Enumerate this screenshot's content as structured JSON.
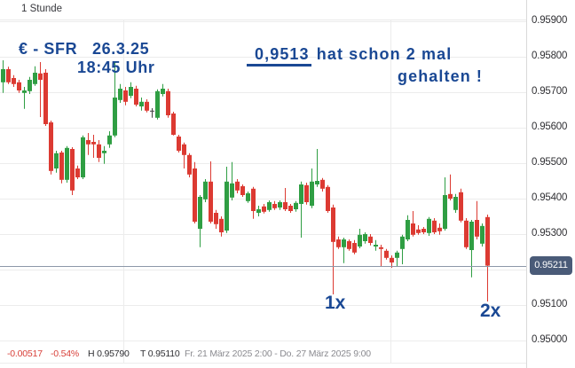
{
  "toolbar": {
    "timeframe": "1 Stunde"
  },
  "annotations": {
    "headline": "€ - SFR   26.3.25",
    "time": "18:45 Uhr",
    "support_level": "0,9513",
    "note_line1": " hat schon 2 mal",
    "note_line2": "gehalten !",
    "marker1": "1x",
    "marker2": "2x",
    "color": "#1a4894"
  },
  "axis": {
    "labels": [
      "0.95900",
      "0.95800",
      "0.95700",
      "0.95600",
      "0.95500",
      "0.95400",
      "0.95300",
      "0.95100",
      "0.95000"
    ]
  },
  "price_badge": {
    "value": "0.95211",
    "background": "#4a5b78"
  },
  "status": {
    "change": "-0.00517",
    "change_percent": "-0.54%",
    "high": "H 0.95790",
    "low": "T 0.95110",
    "date_range": "Fr. 21 März 2025 2:00 - Do. 27 März 2025 9:00"
  },
  "colors": {
    "up": "#2f9e43",
    "down": "#dc3a32",
    "neutral": "#3f3f3f",
    "grid": "#ececec",
    "price_line": "#8c98a8"
  },
  "chart_data": {
    "type": "candlestick",
    "instrument": "EUR-CHF (€ - SFR)",
    "timeframe_hours": 1,
    "ylim": [
      0.95,
      0.959
    ],
    "y_grid_step": 0.001,
    "x_range_label": "Fr. 21 März 2025 2:00 - Do. 27 März 2025 9:00",
    "session_high": 0.9579,
    "session_low": 0.9511,
    "change": -0.00517,
    "change_percent": -0.54,
    "last": 0.95211,
    "support_level": 0.9513,
    "ohlc": [
      [
        0.95728,
        0.9579,
        0.95698,
        0.95765
      ],
      [
        0.95765,
        0.95772,
        0.95723,
        0.95728
      ],
      [
        0.9574,
        0.95748,
        0.95715,
        0.95723
      ],
      [
        0.95728,
        0.95735,
        0.95698,
        0.95705
      ],
      [
        0.95698,
        0.95715,
        0.95653,
        0.95705
      ],
      [
        0.95703,
        0.95743,
        0.95695,
        0.95735
      ],
      [
        0.95723,
        0.95773,
        0.95718,
        0.95755
      ],
      [
        0.95753,
        0.95785,
        0.9563,
        0.95735
      ],
      [
        0.95755,
        0.95765,
        0.95605,
        0.9561
      ],
      [
        0.95615,
        0.9562,
        0.95468,
        0.95478
      ],
      [
        0.95485,
        0.95535,
        0.95473,
        0.95528
      ],
      [
        0.9553,
        0.95535,
        0.95443,
        0.95453
      ],
      [
        0.95453,
        0.95548,
        0.95445,
        0.95543
      ],
      [
        0.9554,
        0.95545,
        0.9541,
        0.95423
      ],
      [
        0.95485,
        0.95493,
        0.95455,
        0.9546
      ],
      [
        0.9546,
        0.95578,
        0.95455,
        0.95573
      ],
      [
        0.95565,
        0.95585,
        0.95523,
        0.95553
      ],
      [
        0.9556,
        0.9558,
        0.95515,
        0.95553
      ],
      [
        0.95553,
        0.95565,
        0.95503,
        0.95515
      ],
      [
        0.95528,
        0.95548,
        0.95498,
        0.95535
      ],
      [
        0.95553,
        0.9559,
        0.95543,
        0.95578
      ],
      [
        0.95578,
        0.95785,
        0.95573,
        0.95685
      ],
      [
        0.95678,
        0.95723,
        0.9567,
        0.9571
      ],
      [
        0.95705,
        0.95715,
        0.95663,
        0.95673
      ],
      [
        0.9569,
        0.95728,
        0.95683,
        0.95715
      ],
      [
        0.9571,
        0.95718,
        0.9566,
        0.95665
      ],
      [
        0.9566,
        0.95685,
        0.95648,
        0.95673
      ],
      [
        0.95673,
        0.9568,
        0.95643,
        0.95648
      ],
      [
        0.95648,
        0.95655,
        0.95628,
        0.95648
      ],
      [
        0.95628,
        0.95708,
        0.95623,
        0.95703
      ],
      [
        0.95695,
        0.95723,
        0.95688,
        0.9571
      ],
      [
        0.95703,
        0.9571,
        0.95628,
        0.95635
      ],
      [
        0.9564,
        0.95645,
        0.95578,
        0.9558
      ],
      [
        0.95575,
        0.9558,
        0.9553,
        0.95535
      ],
      [
        0.95553,
        0.95558,
        0.95485,
        0.95523
      ],
      [
        0.95523,
        0.95528,
        0.9546,
        0.95468
      ],
      [
        0.95485,
        0.95503,
        0.9533,
        0.95335
      ],
      [
        0.95315,
        0.9541,
        0.95263,
        0.95405
      ],
      [
        0.95398,
        0.95455,
        0.9539,
        0.95448
      ],
      [
        0.95448,
        0.95505,
        0.9533,
        0.95335
      ],
      [
        0.9536,
        0.95368,
        0.95315,
        0.95328
      ],
      [
        0.95343,
        0.9535,
        0.95293,
        0.95305
      ],
      [
        0.9531,
        0.9549,
        0.95303,
        0.95448
      ],
      [
        0.95403,
        0.95503,
        0.95395,
        0.95443
      ],
      [
        0.95448,
        0.95455,
        0.95415,
        0.95423
      ],
      [
        0.95435,
        0.9544,
        0.95405,
        0.9541
      ],
      [
        0.95393,
        0.9542,
        0.95388,
        0.95415
      ],
      [
        0.95428,
        0.95433,
        0.95343,
        0.95365
      ],
      [
        0.9536,
        0.9538,
        0.9535,
        0.9537
      ],
      [
        0.95378,
        0.95385,
        0.95358,
        0.95363
      ],
      [
        0.95368,
        0.95395,
        0.95363,
        0.9539
      ],
      [
        0.95385,
        0.95393,
        0.95368,
        0.95373
      ],
      [
        0.95375,
        0.95395,
        0.95368,
        0.9539
      ],
      [
        0.9539,
        0.9543,
        0.95365,
        0.9537
      ],
      [
        0.9538,
        0.95385,
        0.9536,
        0.95365
      ],
      [
        0.9537,
        0.95393,
        0.95363,
        0.95388
      ],
      [
        0.95385,
        0.95448,
        0.9529,
        0.9544
      ],
      [
        0.95438,
        0.95445,
        0.95383,
        0.9539
      ],
      [
        0.9538,
        0.95485,
        0.95373,
        0.95448
      ],
      [
        0.9544,
        0.9554,
        0.95433,
        0.9545
      ],
      [
        0.95453,
        0.95458,
        0.9542,
        0.95428
      ],
      [
        0.95433,
        0.95438,
        0.9536,
        0.95365
      ],
      [
        0.95375,
        0.95383,
        0.9513,
        0.95278
      ],
      [
        0.95285,
        0.95293,
        0.95258,
        0.95263
      ],
      [
        0.95263,
        0.9529,
        0.95218,
        0.95285
      ],
      [
        0.9528,
        0.95285,
        0.95253,
        0.95258
      ],
      [
        0.95275,
        0.95283,
        0.95243,
        0.95248
      ],
      [
        0.95265,
        0.95315,
        0.9526,
        0.95298
      ],
      [
        0.9528,
        0.95305,
        0.95273,
        0.953
      ],
      [
        0.95293,
        0.953,
        0.95268,
        0.95275
      ],
      [
        0.95265,
        0.95283,
        0.95253,
        0.9527
      ],
      [
        0.95263,
        0.9527,
        0.9521,
        0.95258
      ],
      [
        0.95253,
        0.95258,
        0.95228,
        0.95233
      ],
      [
        0.95233,
        0.9524,
        0.95205,
        0.9522
      ],
      [
        0.95233,
        0.95253,
        0.95208,
        0.95248
      ],
      [
        0.95258,
        0.95298,
        0.95215,
        0.95293
      ],
      [
        0.95285,
        0.95353,
        0.9528,
        0.9534
      ],
      [
        0.9533,
        0.95365,
        0.95293,
        0.95298
      ],
      [
        0.95313,
        0.95325,
        0.95298,
        0.95303
      ],
      [
        0.95315,
        0.9532,
        0.953,
        0.95305
      ],
      [
        0.95303,
        0.95348,
        0.95295,
        0.95343
      ],
      [
        0.95338,
        0.95345,
        0.953,
        0.95305
      ],
      [
        0.95318,
        0.9533,
        0.95298,
        0.95308
      ],
      [
        0.95315,
        0.9546,
        0.9531,
        0.9541
      ],
      [
        0.95413,
        0.95468,
        0.95395,
        0.954
      ],
      [
        0.95368,
        0.95413,
        0.9536,
        0.95405
      ],
      [
        0.95418,
        0.95428,
        0.95333,
        0.95338
      ],
      [
        0.95338,
        0.95345,
        0.95258,
        0.95263
      ],
      [
        0.95255,
        0.9534,
        0.95178,
        0.95335
      ],
      [
        0.9534,
        0.95393,
        0.95285,
        0.95293
      ],
      [
        0.95273,
        0.9533,
        0.95265,
        0.95323
      ],
      [
        0.95348,
        0.95355,
        0.9511,
        0.95211
      ]
    ]
  }
}
